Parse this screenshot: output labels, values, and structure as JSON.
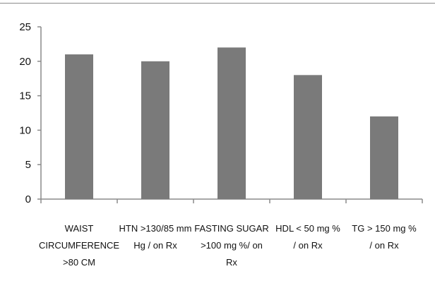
{
  "chart_data": {
    "type": "bar",
    "categories": [
      [
        "WAIST",
        "CIRCUMFERENCE",
        ">80 CM"
      ],
      [
        "HTN >130/85 mm",
        "Hg  / on Rx"
      ],
      [
        "FASTING SUGAR",
        ">100 mg %/ on",
        "Rx"
      ],
      [
        "HDL < 50 mg %",
        "/ on Rx"
      ],
      [
        "TG  > 150 mg  %",
        "/ on Rx"
      ]
    ],
    "values": [
      21,
      20,
      22,
      18,
      12
    ],
    "title": "",
    "xlabel": "",
    "ylabel": "",
    "ylim": [
      0,
      25
    ],
    "yticks": [
      0,
      5,
      10,
      15,
      20,
      25
    ],
    "grid": false,
    "legend": "none",
    "bar_color": "#7a7a7a",
    "axis_color": "#8a8a8a"
  }
}
